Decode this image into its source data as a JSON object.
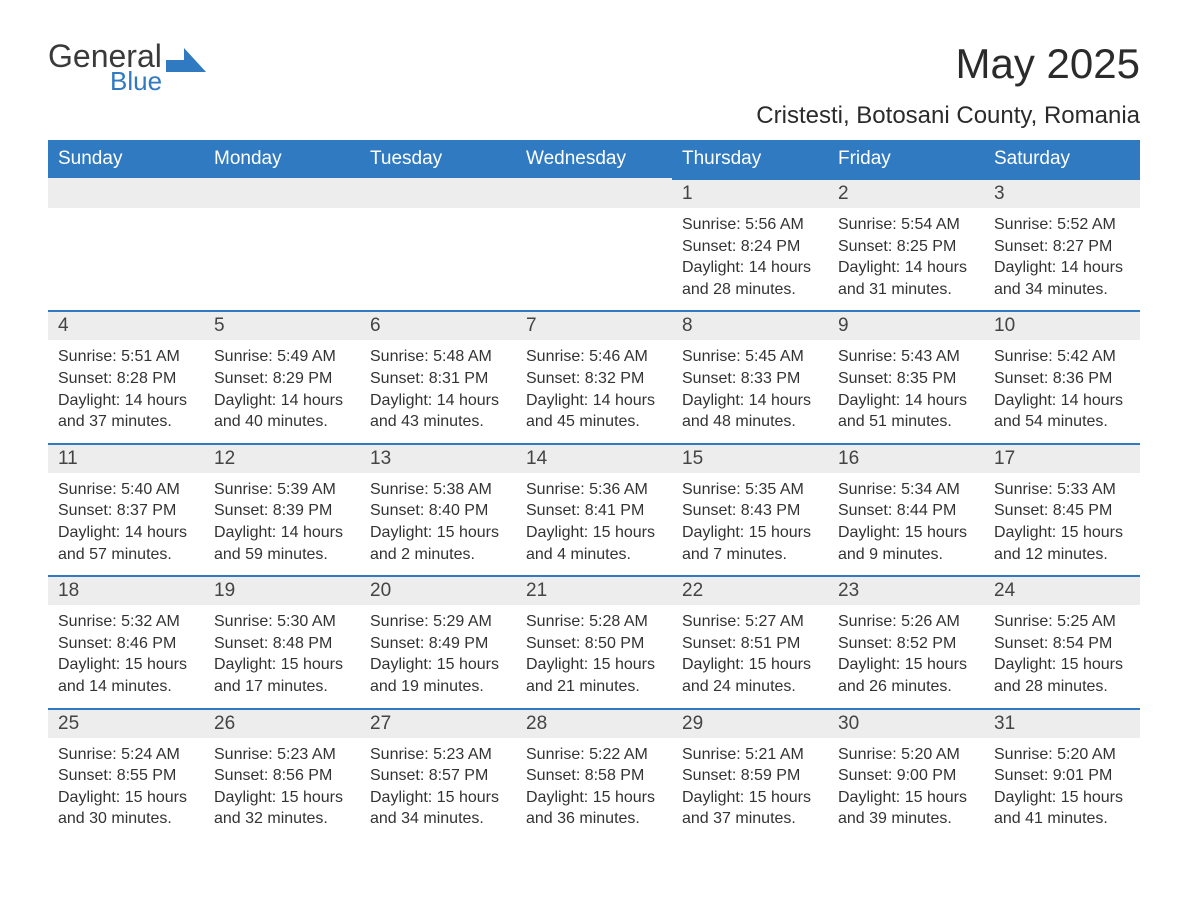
{
  "logo": {
    "word1": "General",
    "word2": "Blue",
    "word1_color": "#3a3a3a",
    "word2_color": "#2f7ac0"
  },
  "title": "May 2025",
  "location": "Cristesti, Botosani County, Romania",
  "colors": {
    "header_bg": "#2f7ac0",
    "header_text": "#ffffff",
    "daynum_bg": "#ededed",
    "daynum_border": "#2f7ac0",
    "body_text": "#333333",
    "page_bg": "#ffffff"
  },
  "font": {
    "family": "Arial",
    "title_size": 42,
    "location_size": 24,
    "th_size": 19,
    "daynum_size": 19,
    "body_size": 16
  },
  "calendar": {
    "type": "table",
    "weekdays": [
      "Sunday",
      "Monday",
      "Tuesday",
      "Wednesday",
      "Thursday",
      "Friday",
      "Saturday"
    ],
    "weeks": [
      [
        null,
        null,
        null,
        null,
        {
          "day": "1",
          "sunrise": "5:56 AM",
          "sunset": "8:24 PM",
          "daylight": "14 hours and 28 minutes."
        },
        {
          "day": "2",
          "sunrise": "5:54 AM",
          "sunset": "8:25 PM",
          "daylight": "14 hours and 31 minutes."
        },
        {
          "day": "3",
          "sunrise": "5:52 AM",
          "sunset": "8:27 PM",
          "daylight": "14 hours and 34 minutes."
        }
      ],
      [
        {
          "day": "4",
          "sunrise": "5:51 AM",
          "sunset": "8:28 PM",
          "daylight": "14 hours and 37 minutes."
        },
        {
          "day": "5",
          "sunrise": "5:49 AM",
          "sunset": "8:29 PM",
          "daylight": "14 hours and 40 minutes."
        },
        {
          "day": "6",
          "sunrise": "5:48 AM",
          "sunset": "8:31 PM",
          "daylight": "14 hours and 43 minutes."
        },
        {
          "day": "7",
          "sunrise": "5:46 AM",
          "sunset": "8:32 PM",
          "daylight": "14 hours and 45 minutes."
        },
        {
          "day": "8",
          "sunrise": "5:45 AM",
          "sunset": "8:33 PM",
          "daylight": "14 hours and 48 minutes."
        },
        {
          "day": "9",
          "sunrise": "5:43 AM",
          "sunset": "8:35 PM",
          "daylight": "14 hours and 51 minutes."
        },
        {
          "day": "10",
          "sunrise": "5:42 AM",
          "sunset": "8:36 PM",
          "daylight": "14 hours and 54 minutes."
        }
      ],
      [
        {
          "day": "11",
          "sunrise": "5:40 AM",
          "sunset": "8:37 PM",
          "daylight": "14 hours and 57 minutes."
        },
        {
          "day": "12",
          "sunrise": "5:39 AM",
          "sunset": "8:39 PM",
          "daylight": "14 hours and 59 minutes."
        },
        {
          "day": "13",
          "sunrise": "5:38 AM",
          "sunset": "8:40 PM",
          "daylight": "15 hours and 2 minutes."
        },
        {
          "day": "14",
          "sunrise": "5:36 AM",
          "sunset": "8:41 PM",
          "daylight": "15 hours and 4 minutes."
        },
        {
          "day": "15",
          "sunrise": "5:35 AM",
          "sunset": "8:43 PM",
          "daylight": "15 hours and 7 minutes."
        },
        {
          "day": "16",
          "sunrise": "5:34 AM",
          "sunset": "8:44 PM",
          "daylight": "15 hours and 9 minutes."
        },
        {
          "day": "17",
          "sunrise": "5:33 AM",
          "sunset": "8:45 PM",
          "daylight": "15 hours and 12 minutes."
        }
      ],
      [
        {
          "day": "18",
          "sunrise": "5:32 AM",
          "sunset": "8:46 PM",
          "daylight": "15 hours and 14 minutes."
        },
        {
          "day": "19",
          "sunrise": "5:30 AM",
          "sunset": "8:48 PM",
          "daylight": "15 hours and 17 minutes."
        },
        {
          "day": "20",
          "sunrise": "5:29 AM",
          "sunset": "8:49 PM",
          "daylight": "15 hours and 19 minutes."
        },
        {
          "day": "21",
          "sunrise": "5:28 AM",
          "sunset": "8:50 PM",
          "daylight": "15 hours and 21 minutes."
        },
        {
          "day": "22",
          "sunrise": "5:27 AM",
          "sunset": "8:51 PM",
          "daylight": "15 hours and 24 minutes."
        },
        {
          "day": "23",
          "sunrise": "5:26 AM",
          "sunset": "8:52 PM",
          "daylight": "15 hours and 26 minutes."
        },
        {
          "day": "24",
          "sunrise": "5:25 AM",
          "sunset": "8:54 PM",
          "daylight": "15 hours and 28 minutes."
        }
      ],
      [
        {
          "day": "25",
          "sunrise": "5:24 AM",
          "sunset": "8:55 PM",
          "daylight": "15 hours and 30 minutes."
        },
        {
          "day": "26",
          "sunrise": "5:23 AM",
          "sunset": "8:56 PM",
          "daylight": "15 hours and 32 minutes."
        },
        {
          "day": "27",
          "sunrise": "5:23 AM",
          "sunset": "8:57 PM",
          "daylight": "15 hours and 34 minutes."
        },
        {
          "day": "28",
          "sunrise": "5:22 AM",
          "sunset": "8:58 PM",
          "daylight": "15 hours and 36 minutes."
        },
        {
          "day": "29",
          "sunrise": "5:21 AM",
          "sunset": "8:59 PM",
          "daylight": "15 hours and 37 minutes."
        },
        {
          "day": "30",
          "sunrise": "5:20 AM",
          "sunset": "9:00 PM",
          "daylight": "15 hours and 39 minutes."
        },
        {
          "day": "31",
          "sunrise": "5:20 AM",
          "sunset": "9:01 PM",
          "daylight": "15 hours and 41 minutes."
        }
      ]
    ],
    "labels": {
      "sunrise": "Sunrise: ",
      "sunset": "Sunset: ",
      "daylight": "Daylight: "
    }
  }
}
